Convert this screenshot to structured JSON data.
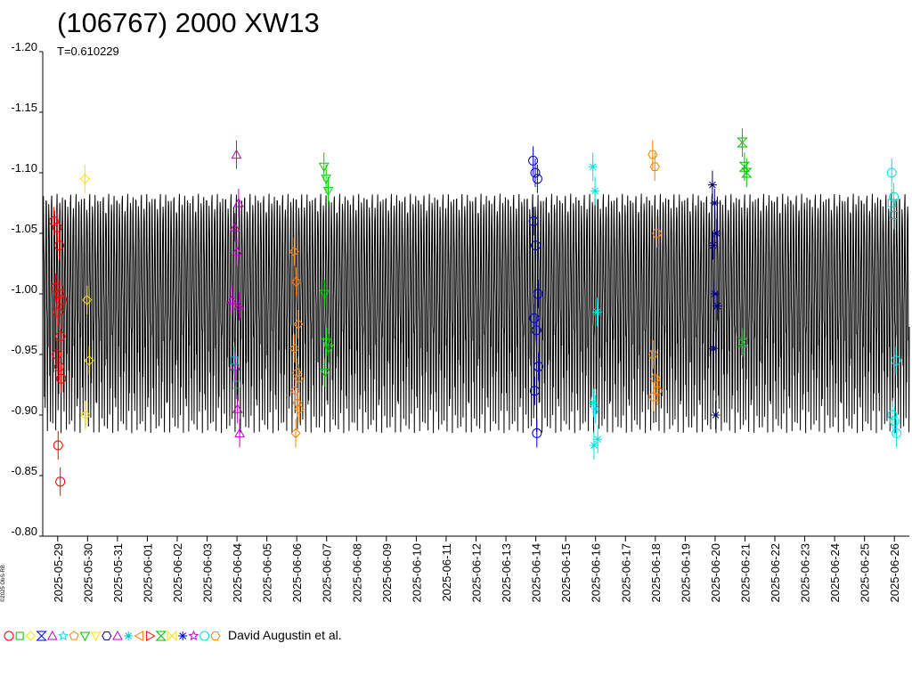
{
  "chart_data": {
    "type": "line",
    "title": "(106767) 2000 XW13",
    "subtitle": "T=0.610229",
    "xlabel": "",
    "ylabel": "",
    "y_inverted": true,
    "ylim": [
      -0.8,
      -1.2
    ],
    "yticks": [
      "-1.20",
      "-1.15",
      "-1.10",
      "-1.05",
      "-1.00",
      "-0.95",
      "-0.90",
      "-0.85",
      "-0.80"
    ],
    "xlim": [
      "2025-05-28 12:00",
      "2025-06-26 12:00"
    ],
    "xticks": [
      "2025-05-29",
      "2025-05-30",
      "2025-05-31",
      "2025-06-01",
      "2025-06-02",
      "2025-06-03",
      "2025-06-04",
      "2025-06-05",
      "2025-06-06",
      "2025-06-07",
      "2025-06-08",
      "2025-06-09",
      "2025-06-10",
      "2025-06-11",
      "2025-06-12",
      "2025-06-13",
      "2025-06-14",
      "2025-06-15",
      "2025-06-16",
      "2025-06-17",
      "2025-06-18",
      "2025-06-19",
      "2025-06-20",
      "2025-06-21",
      "2025-06-22",
      "2025-06-23",
      "2025-06-24",
      "2025-06-25",
      "2025-06-26"
    ],
    "grid": false,
    "model_curve": {
      "period_hours": 0.610229,
      "min_value": -0.885,
      "max_value": -1.11,
      "color": "#000000"
    },
    "series": [
      {
        "color": "#ff0000",
        "marker": "circle",
        "x": [
          "2025-05-28 23:00",
          "2025-05-29 00:00",
          "2025-05-29 00:00",
          "2025-05-29 00:00",
          "2025-05-29 00:00",
          "2025-05-29 00:30",
          "2025-05-29 00:30",
          "2025-05-29 01:00",
          "2025-05-29 01:30",
          "2025-05-29 02:00",
          "2025-05-29 02:00",
          "2025-05-29 02:30",
          "2025-05-29 02:30"
        ],
        "y": [
          -1.06,
          -1.055,
          -1.04,
          -1.005,
          -0.985,
          -0.965,
          -0.95,
          -1.0,
          -0.995,
          -0.94,
          -0.93,
          -0.875,
          -0.845
        ]
      },
      {
        "color": "#ffe000",
        "marker": "diamond",
        "x": [
          "2025-05-30 00:00",
          "2025-05-30 00:00",
          "2025-05-30 00:00",
          "2025-05-30 00:00"
        ],
        "y": [
          -1.095,
          -0.995,
          -0.945,
          -0.9
        ]
      },
      {
        "color": "#c000c0",
        "marker": "triangle-up",
        "x": [
          "2025-06-03 22:00",
          "2025-06-04 00:00",
          "2025-06-04 00:00",
          "2025-06-04 00:00",
          "2025-06-04 00:00",
          "2025-06-04 00:00",
          "2025-06-04 00:00",
          "2025-06-04 00:00",
          "2025-06-04 00:00"
        ],
        "y": [
          -0.995,
          -1.115,
          -1.075,
          -1.055,
          -1.035,
          -0.99,
          -0.94,
          -0.905,
          -0.885
        ]
      },
      {
        "color": "#00c0c0",
        "marker": "square",
        "x": [
          "2025-06-04 00:00",
          "2025-06-04 00:00"
        ],
        "y": [
          -0.945,
          -0.925
        ]
      },
      {
        "color": "#ff8000",
        "marker": "diamond",
        "x": [
          "2025-06-06 00:00",
          "2025-06-06 00:00",
          "2025-06-06 00:00",
          "2025-06-06 00:00",
          "2025-06-06 00:00",
          "2025-06-06 00:00",
          "2025-06-06 00:00",
          "2025-06-06 00:00",
          "2025-06-06 00:00",
          "2025-06-06 00:00"
        ],
        "y": [
          -1.035,
          -1.01,
          -0.975,
          -0.955,
          -0.935,
          -0.93,
          -0.92,
          -0.91,
          -0.905,
          -0.885
        ]
      },
      {
        "color": "#00d000",
        "marker": "triangle-down",
        "x": [
          "2025-06-07 00:00",
          "2025-06-07 00:00",
          "2025-06-07 00:00",
          "2025-06-07 00:00",
          "2025-06-07 00:00",
          "2025-06-07 00:00",
          "2025-06-07 00:00"
        ],
        "y": [
          -1.105,
          -1.095,
          -1.085,
          -1.0,
          -0.96,
          -0.955,
          -0.935
        ]
      },
      {
        "color": "#0000d0",
        "marker": "circle",
        "x": [
          "2025-06-14 00:00",
          "2025-06-14 00:00",
          "2025-06-14 00:00",
          "2025-06-14 00:00",
          "2025-06-14 00:00",
          "2025-06-14 00:00",
          "2025-06-14 00:00",
          "2025-06-14 00:00",
          "2025-06-14 00:00",
          "2025-06-14 00:00",
          "2025-06-14 00:00"
        ],
        "y": [
          -1.11,
          -1.1,
          -1.095,
          -1.06,
          -1.04,
          -1.0,
          -0.98,
          -0.97,
          -0.94,
          -0.92,
          -0.885
        ]
      },
      {
        "color": "#00e0e0",
        "marker": "asterisk",
        "x": [
          "2025-06-16 00:00",
          "2025-06-16 00:00",
          "2025-06-16 00:00",
          "2025-06-16 00:00",
          "2025-06-16 00:00",
          "2025-06-16 00:00",
          "2025-06-16 00:00"
        ],
        "y": [
          -1.105,
          -1.085,
          -0.985,
          -0.91,
          -0.905,
          -0.88,
          -0.875
        ]
      },
      {
        "color": "#ff8000",
        "marker": "hexagon",
        "x": [
          "2025-06-18 00:00",
          "2025-06-18 00:00",
          "2025-06-18 00:00",
          "2025-06-18 00:00",
          "2025-06-18 00:00",
          "2025-06-18 00:00",
          "2025-06-18 00:00"
        ],
        "y": [
          -1.115,
          -1.105,
          -1.05,
          -0.95,
          -0.93,
          -0.92,
          -0.915
        ]
      },
      {
        "color": "#000080",
        "marker": "asterisk",
        "x": [
          "2025-06-20 00:00",
          "2025-06-20 00:00",
          "2025-06-20 00:00",
          "2025-06-20 00:00",
          "2025-06-20 00:00",
          "2025-06-20 00:00",
          "2025-06-20 00:00",
          "2025-06-20 00:00"
        ],
        "y": [
          -1.09,
          -1.075,
          -1.05,
          -1.04,
          -1.0,
          -0.99,
          -0.955,
          -0.9
        ]
      },
      {
        "color": "#00c000",
        "marker": "hourglass",
        "x": [
          "2025-06-21 00:00",
          "2025-06-21 00:00",
          "2025-06-21 00:00",
          "2025-06-21 00:00"
        ],
        "y": [
          -1.125,
          -1.105,
          -1.1,
          -0.96
        ]
      },
      {
        "color": "#00e0e0",
        "marker": "circle",
        "x": [
          "2025-06-26 00:00",
          "2025-06-26 00:00",
          "2025-06-26 00:00",
          "2025-06-26 00:00",
          "2025-06-26 00:00",
          "2025-06-26 00:00"
        ],
        "y": [
          -1.1,
          -1.08,
          -0.945,
          -0.9,
          -0.895,
          -0.885
        ]
      },
      {
        "color": "#00c0c0",
        "marker": "square",
        "x": [
          "2025-06-26 00:00",
          "2025-06-26 00:00"
        ],
        "y": [
          -1.075,
          -1.065
        ]
      }
    ],
    "legend": {
      "placement": "bottom-left",
      "markers": [
        {
          "shape": "circle",
          "color": "#ff0000"
        },
        {
          "shape": "square",
          "color": "#00c000"
        },
        {
          "shape": "diamond",
          "color": "#ffe000"
        },
        {
          "shape": "hourglass",
          "color": "#0000ff"
        },
        {
          "shape": "triangle-up",
          "color": "#c000c0"
        },
        {
          "shape": "star",
          "color": "#00e0e0"
        },
        {
          "shape": "pentagon",
          "color": "#ff8000"
        },
        {
          "shape": "triangle-down",
          "color": "#00c000"
        },
        {
          "shape": "triangle-down",
          "color": "#ffe000"
        },
        {
          "shape": "hexagon",
          "color": "#000080"
        },
        {
          "shape": "triangle-up",
          "color": "#c000c0"
        },
        {
          "shape": "asterisk",
          "color": "#00c0c0"
        },
        {
          "shape": "triangle-left",
          "color": "#ff8000"
        },
        {
          "shape": "triangle-right",
          "color": "#ff0000"
        },
        {
          "shape": "hourglass",
          "color": "#00c000"
        },
        {
          "shape": "bowtie",
          "color": "#ffe000"
        },
        {
          "shape": "asterisk",
          "color": "#0000ff"
        },
        {
          "shape": "star",
          "color": "#c000c0"
        },
        {
          "shape": "circle",
          "color": "#00e0e0"
        },
        {
          "shape": "hexagon",
          "color": "#ff8000"
        }
      ]
    }
  },
  "credit": "David Augustin et al.",
  "side_note": "©2025 ObS-RB"
}
